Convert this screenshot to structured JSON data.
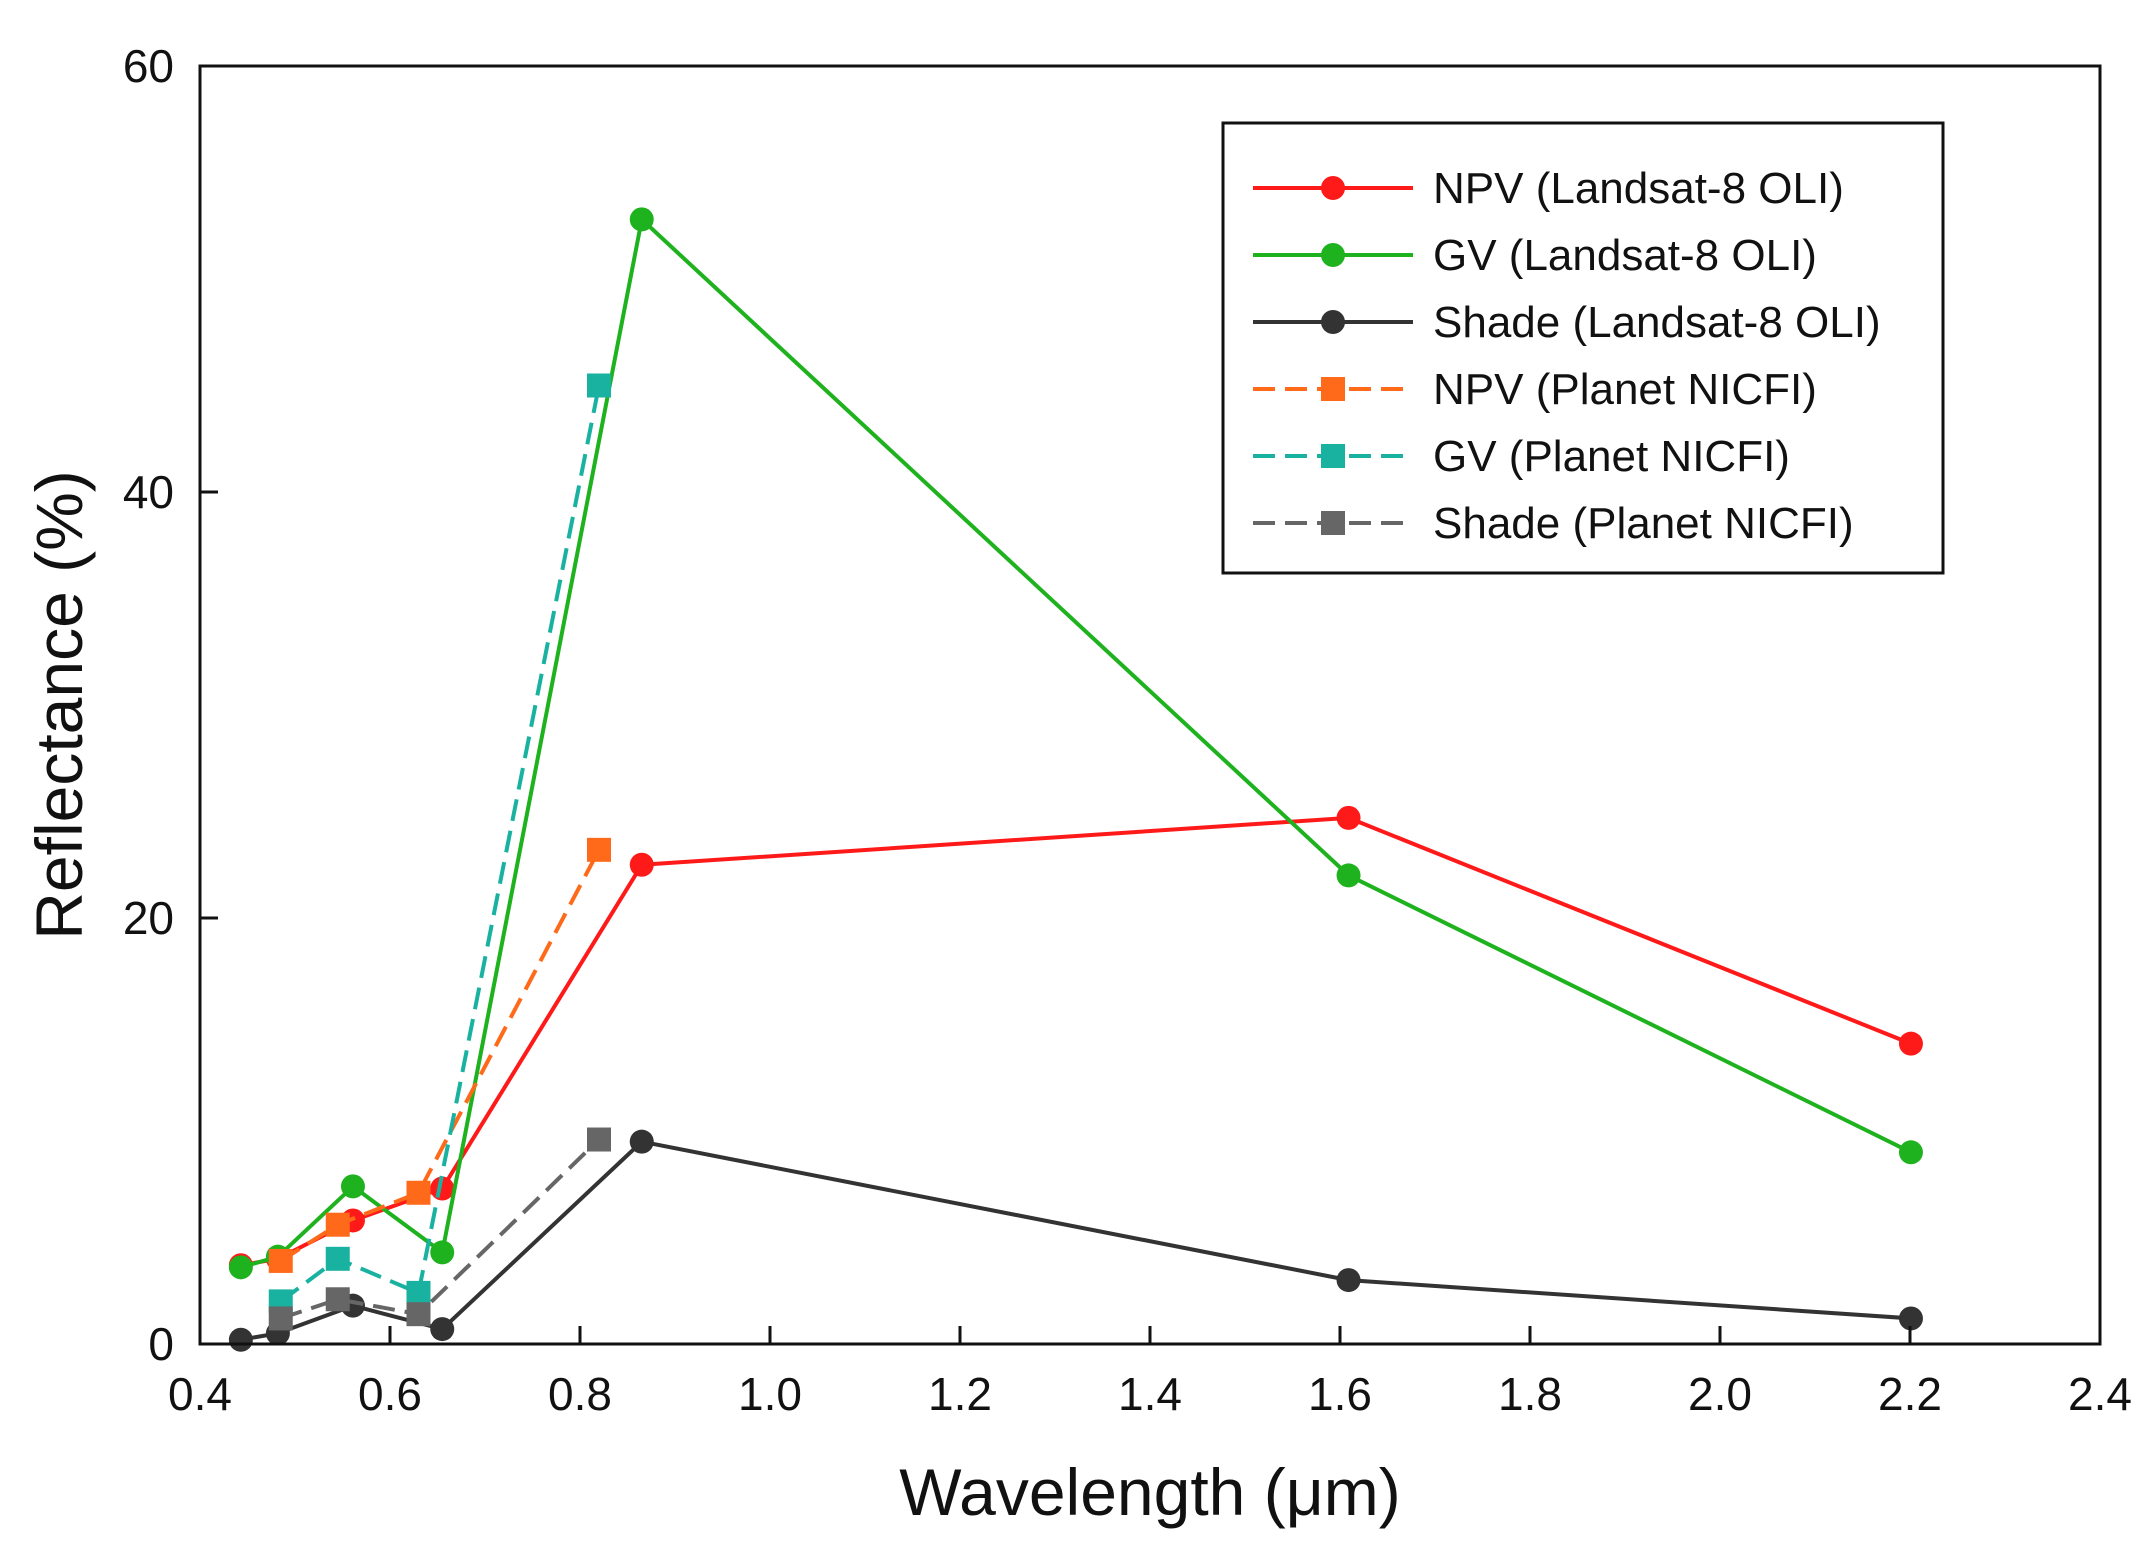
{
  "chart_data": {
    "type": "line",
    "title": "",
    "xlabel": "Wavelength (μm)",
    "ylabel": "Reflectance (%)",
    "xlim": [
      0.4,
      2.4
    ],
    "ylim": [
      0,
      60
    ],
    "xticks": [
      "0.4",
      "0.6",
      "0.8",
      "1.0",
      "1.2",
      "1.4",
      "1.6",
      "1.8",
      "2.0",
      "2.2",
      "2.4"
    ],
    "yticks": [
      "0",
      "20",
      "40",
      "60"
    ],
    "grid": false,
    "legend_position": "top-right",
    "series": [
      {
        "name": "NPV (Landsat-8 OLI)",
        "color": "#ff1a1a",
        "marker": "circle",
        "dash": "solid",
        "x": [
          0.443,
          0.482,
          0.561,
          0.655,
          0.865,
          1.609,
          2.201
        ],
        "y": [
          3.7,
          4.0,
          5.8,
          7.3,
          22.5,
          24.7,
          14.1
        ]
      },
      {
        "name": "GV (Landsat-8 OLI)",
        "color": "#1fb21f",
        "marker": "circle",
        "dash": "solid",
        "x": [
          0.443,
          0.482,
          0.561,
          0.655,
          0.865,
          1.609,
          2.201
        ],
        "y": [
          3.6,
          4.1,
          7.4,
          4.3,
          52.8,
          22.0,
          9.0
        ]
      },
      {
        "name": "Shade (Landsat-8 OLI)",
        "color": "#333333",
        "marker": "circle",
        "dash": "solid",
        "x": [
          0.443,
          0.482,
          0.561,
          0.655,
          0.865,
          1.609,
          2.201
        ],
        "y": [
          0.2,
          0.5,
          1.8,
          0.7,
          9.5,
          3.0,
          1.2
        ]
      },
      {
        "name": "NPV (Planet NICFI)",
        "color": "#ff6a1a",
        "marker": "square",
        "dash": "dashed",
        "x": [
          0.485,
          0.545,
          0.63,
          0.82
        ],
        "y": [
          3.9,
          5.6,
          7.1,
          23.2
        ]
      },
      {
        "name": "GV (Planet NICFI)",
        "color": "#19b2a0",
        "marker": "square",
        "dash": "dashed",
        "x": [
          0.485,
          0.545,
          0.63,
          0.82
        ],
        "y": [
          2.0,
          4.0,
          2.4,
          45.0
        ]
      },
      {
        "name": "Shade (Planet NICFI)",
        "color": "#666666",
        "marker": "square",
        "dash": "dashed",
        "x": [
          0.485,
          0.545,
          0.63,
          0.82
        ],
        "y": [
          1.2,
          2.1,
          1.4,
          9.6
        ]
      }
    ]
  }
}
